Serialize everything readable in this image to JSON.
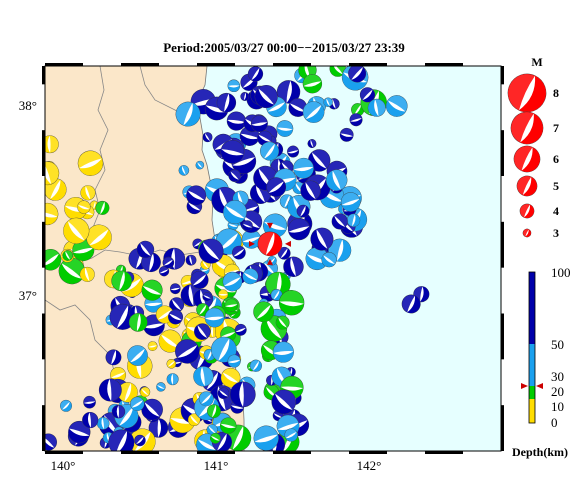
{
  "title": "Period:2005/03/27 00:00−−2015/03/27 23:39",
  "colors": {
    "land": "#fbe7c9",
    "sea": "#e6ffff",
    "deep": "#0000aa",
    "mid": "#1aa0ee",
    "shallow_green": "#00cc00",
    "shallow_yellow": "#ffdd00",
    "main_event": "#ff0000"
  },
  "map": {
    "lon_ticks": [
      {
        "value": 140,
        "label": "140°"
      },
      {
        "value": 141,
        "label": "141°"
      },
      {
        "value": 142,
        "label": "142°"
      }
    ],
    "lat_ticks": [
      {
        "value": 38,
        "label": "38°"
      },
      {
        "value": 37,
        "label": "37°"
      }
    ],
    "lon_range": [
      139.9,
      142.9
    ],
    "lat_range": [
      36.1,
      38.2
    ]
  },
  "magnitude_legend": {
    "title": "M",
    "items": [
      {
        "label": "8",
        "mag": 8
      },
      {
        "label": "7",
        "mag": 7
      },
      {
        "label": "6",
        "mag": 6
      },
      {
        "label": "5",
        "mag": 5
      },
      {
        "label": "4",
        "mag": 4
      },
      {
        "label": "3",
        "mag": 3
      }
    ]
  },
  "depth_legend": {
    "unit_label": "Depth(km)",
    "ticks": [
      "0",
      "10",
      "20",
      "30",
      "50",
      "100"
    ]
  },
  "main_event": {
    "lon": 141.38,
    "lat": 37.23,
    "mag": 5.5
  }
}
